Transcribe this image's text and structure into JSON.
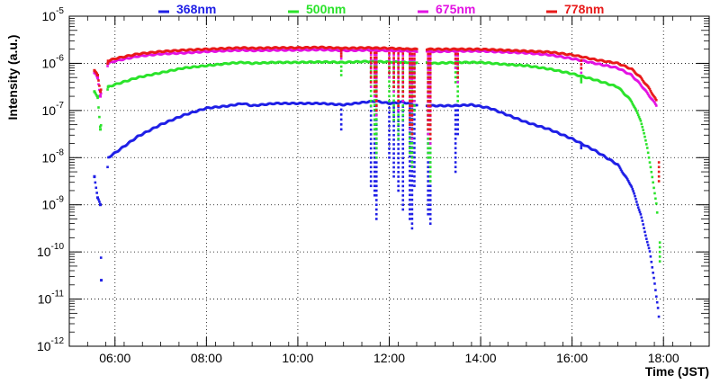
{
  "chart_data": {
    "type": "scatter",
    "title": "",
    "xlabel": "Time (JST)",
    "ylabel": "Intensity (a.u.)",
    "xscale": "linear",
    "yscale": "log",
    "xlim": [
      5.0,
      19.0
    ],
    "ylim_exponent": [
      -12,
      -5
    ],
    "grid": true,
    "legend_position": "top",
    "x_ticks": [
      {
        "value": 6,
        "label": "06:00"
      },
      {
        "value": 8,
        "label": "08:00"
      },
      {
        "value": 10,
        "label": "10:00"
      },
      {
        "value": 12,
        "label": "12:00"
      },
      {
        "value": 14,
        "label": "14:00"
      },
      {
        "value": 16,
        "label": "16:00"
      },
      {
        "value": 18,
        "label": "18:00"
      }
    ],
    "y_ticks": [
      {
        "exp": -5,
        "base": "10",
        "sup": "-5"
      },
      {
        "exp": -6,
        "base": "10",
        "sup": "-6"
      },
      {
        "exp": -7,
        "base": "10",
        "sup": "-7"
      },
      {
        "exp": -8,
        "base": "10",
        "sup": "-8"
      },
      {
        "exp": -9,
        "base": "10",
        "sup": "-9"
      },
      {
        "exp": -10,
        "base": "10",
        "sup": "-10"
      },
      {
        "exp": -11,
        "base": "10",
        "sup": "-11"
      },
      {
        "exp": -12,
        "base": "10",
        "sup": "-12"
      }
    ],
    "series": [
      {
        "name": "368nm",
        "color": "#1f1fe6",
        "log10_values": [
          [
            5.55,
            -8.4
          ],
          [
            5.62,
            -8.85
          ],
          [
            5.68,
            -9.0
          ],
          [
            5.7,
            -10.6
          ],
          [
            5.85,
            -8.0
          ],
          [
            6.0,
            -7.9
          ],
          [
            6.5,
            -7.55
          ],
          [
            7.0,
            -7.3
          ],
          [
            7.5,
            -7.1
          ],
          [
            8.0,
            -6.95
          ],
          [
            8.5,
            -6.9
          ],
          [
            8.8,
            -6.85
          ],
          [
            9.0,
            -6.9
          ],
          [
            9.5,
            -6.85
          ],
          [
            10.0,
            -6.85
          ],
          [
            10.5,
            -6.85
          ],
          [
            11.0,
            -6.88
          ],
          [
            11.5,
            -6.82
          ],
          [
            11.7,
            -6.8
          ],
          [
            12.0,
            -6.85
          ],
          [
            12.3,
            -6.82
          ],
          [
            12.6,
            -6.9
          ],
          [
            13.0,
            -6.9
          ],
          [
            13.4,
            -6.9
          ],
          [
            13.8,
            -6.88
          ],
          [
            14.2,
            -6.95
          ],
          [
            14.6,
            -7.1
          ],
          [
            15.0,
            -7.25
          ],
          [
            15.5,
            -7.4
          ],
          [
            16.0,
            -7.6
          ],
          [
            16.5,
            -7.85
          ],
          [
            17.0,
            -8.15
          ],
          [
            17.3,
            -8.6
          ],
          [
            17.5,
            -9.2
          ],
          [
            17.7,
            -10.0
          ],
          [
            17.8,
            -10.6
          ],
          [
            17.85,
            -11.0
          ],
          [
            17.88,
            -11.2
          ],
          [
            17.9,
            -11.4
          ]
        ],
        "dips": [
          [
            10.95,
            -7.4
          ],
          [
            11.6,
            -8.6
          ],
          [
            11.68,
            -8.8
          ],
          [
            11.72,
            -9.3
          ],
          [
            12.0,
            -8.0
          ],
          [
            12.1,
            -8.4
          ],
          [
            12.2,
            -8.7
          ],
          [
            12.3,
            -9.1
          ],
          [
            12.45,
            -9.3
          ],
          [
            12.5,
            -9.5
          ],
          [
            12.55,
            -8.6
          ],
          [
            12.85,
            -9.2
          ],
          [
            12.9,
            -9.4
          ],
          [
            13.45,
            -8.3
          ],
          [
            13.5,
            -7.5
          ],
          [
            16.2,
            -7.8
          ]
        ]
      },
      {
        "name": "500nm",
        "color": "#2be32b",
        "log10_values": [
          [
            5.55,
            -6.6
          ],
          [
            5.62,
            -6.7
          ],
          [
            5.68,
            -7.4
          ],
          [
            5.85,
            -6.5
          ],
          [
            6.0,
            -6.45
          ],
          [
            6.5,
            -6.3
          ],
          [
            7.0,
            -6.2
          ],
          [
            7.5,
            -6.1
          ],
          [
            8.0,
            -6.05
          ],
          [
            8.5,
            -6.0
          ],
          [
            8.8,
            -5.98
          ],
          [
            9.0,
            -6.0
          ],
          [
            9.5,
            -5.98
          ],
          [
            10.0,
            -5.98
          ],
          [
            10.5,
            -5.97
          ],
          [
            11.0,
            -5.98
          ],
          [
            11.5,
            -5.96
          ],
          [
            12.0,
            -5.97
          ],
          [
            12.5,
            -5.98
          ],
          [
            13.0,
            -6.0
          ],
          [
            13.5,
            -5.98
          ],
          [
            14.0,
            -5.98
          ],
          [
            14.5,
            -6.02
          ],
          [
            15.0,
            -6.05
          ],
          [
            15.5,
            -6.12
          ],
          [
            16.0,
            -6.22
          ],
          [
            16.5,
            -6.35
          ],
          [
            17.0,
            -6.5
          ],
          [
            17.3,
            -6.8
          ],
          [
            17.5,
            -7.2
          ],
          [
            17.65,
            -7.8
          ],
          [
            17.75,
            -8.4
          ],
          [
            17.85,
            -9.0
          ],
          [
            17.88,
            -9.4
          ]
        ],
        "dips": [
          [
            10.95,
            -6.25
          ],
          [
            11.6,
            -6.9
          ],
          [
            11.68,
            -7.5
          ],
          [
            11.72,
            -8.0
          ],
          [
            12.0,
            -6.8
          ],
          [
            12.1,
            -7.2
          ],
          [
            12.2,
            -7.6
          ],
          [
            12.3,
            -7.2
          ],
          [
            12.45,
            -7.9
          ],
          [
            12.5,
            -8.2
          ],
          [
            12.55,
            -7.0
          ],
          [
            12.85,
            -8.0
          ],
          [
            12.9,
            -8.5
          ],
          [
            13.45,
            -6.4
          ],
          [
            13.5,
            -6.8
          ],
          [
            16.2,
            -6.4
          ],
          [
            17.92,
            -10.2
          ]
        ]
      },
      {
        "name": "675nm",
        "color": "#e312e3",
        "log10_values": [
          [
            5.55,
            -6.2
          ],
          [
            5.62,
            -6.3
          ],
          [
            5.68,
            -6.7
          ],
          [
            5.85,
            -6.0
          ],
          [
            6.0,
            -5.95
          ],
          [
            6.5,
            -5.85
          ],
          [
            7.0,
            -5.8
          ],
          [
            7.5,
            -5.78
          ],
          [
            8.0,
            -5.75
          ],
          [
            8.5,
            -5.73
          ],
          [
            8.8,
            -5.72
          ],
          [
            9.0,
            -5.73
          ],
          [
            9.5,
            -5.72
          ],
          [
            10.0,
            -5.72
          ],
          [
            10.5,
            -5.71
          ],
          [
            11.0,
            -5.73
          ],
          [
            11.5,
            -5.72
          ],
          [
            12.0,
            -5.73
          ],
          [
            12.5,
            -5.74
          ],
          [
            13.0,
            -5.75
          ],
          [
            13.5,
            -5.74
          ],
          [
            14.0,
            -5.74
          ],
          [
            14.5,
            -5.76
          ],
          [
            15.0,
            -5.78
          ],
          [
            15.5,
            -5.82
          ],
          [
            16.0,
            -5.9
          ],
          [
            16.5,
            -6.0
          ],
          [
            17.0,
            -6.1
          ],
          [
            17.3,
            -6.25
          ],
          [
            17.5,
            -6.45
          ],
          [
            17.7,
            -6.7
          ],
          [
            17.85,
            -6.9
          ]
        ],
        "dips": [
          [
            10.95,
            -5.9
          ],
          [
            11.6,
            -6.5
          ],
          [
            11.68,
            -6.7
          ],
          [
            11.72,
            -7.1
          ],
          [
            12.0,
            -6.3
          ],
          [
            12.1,
            -6.6
          ],
          [
            12.2,
            -7.0
          ],
          [
            12.3,
            -6.8
          ],
          [
            12.45,
            -7.4
          ],
          [
            12.5,
            -7.6
          ],
          [
            12.55,
            -6.8
          ],
          [
            12.85,
            -7.5
          ],
          [
            12.9,
            -7.7
          ],
          [
            13.45,
            -6.1
          ],
          [
            13.5,
            -6.4
          ],
          [
            16.2,
            -6.2
          ]
        ]
      },
      {
        "name": "778nm",
        "color": "#e81a1a",
        "log10_values": [
          [
            5.55,
            -6.15
          ],
          [
            5.62,
            -6.25
          ],
          [
            5.68,
            -6.6
          ],
          [
            5.85,
            -5.95
          ],
          [
            6.0,
            -5.9
          ],
          [
            6.5,
            -5.8
          ],
          [
            7.0,
            -5.75
          ],
          [
            7.5,
            -5.72
          ],
          [
            8.0,
            -5.7
          ],
          [
            8.5,
            -5.68
          ],
          [
            8.8,
            -5.67
          ],
          [
            9.0,
            -5.68
          ],
          [
            9.5,
            -5.67
          ],
          [
            10.0,
            -5.67
          ],
          [
            10.5,
            -5.66
          ],
          [
            11.0,
            -5.68
          ],
          [
            11.5,
            -5.67
          ],
          [
            12.0,
            -5.68
          ],
          [
            12.5,
            -5.7
          ],
          [
            13.0,
            -5.7
          ],
          [
            13.5,
            -5.7
          ],
          [
            14.0,
            -5.7
          ],
          [
            14.5,
            -5.72
          ],
          [
            15.0,
            -5.74
          ],
          [
            15.5,
            -5.76
          ],
          [
            16.0,
            -5.82
          ],
          [
            16.5,
            -5.92
          ],
          [
            17.0,
            -6.0
          ],
          [
            17.3,
            -6.12
          ],
          [
            17.5,
            -6.3
          ],
          [
            17.7,
            -6.55
          ],
          [
            17.85,
            -6.8
          ]
        ],
        "dips": [
          [
            10.95,
            -5.85
          ],
          [
            11.6,
            -6.4
          ],
          [
            11.68,
            -6.6
          ],
          [
            11.72,
            -7.0
          ],
          [
            12.0,
            -6.2
          ],
          [
            12.1,
            -6.5
          ],
          [
            12.2,
            -6.9
          ],
          [
            12.3,
            -6.7
          ],
          [
            12.45,
            -7.3
          ],
          [
            12.5,
            -7.5
          ],
          [
            12.55,
            -6.7
          ],
          [
            12.85,
            -7.4
          ],
          [
            12.9,
            -7.6
          ],
          [
            13.45,
            -6.0
          ],
          [
            13.5,
            -6.3
          ],
          [
            16.2,
            -6.1
          ],
          [
            17.9,
            -8.5
          ]
        ]
      }
    ]
  }
}
